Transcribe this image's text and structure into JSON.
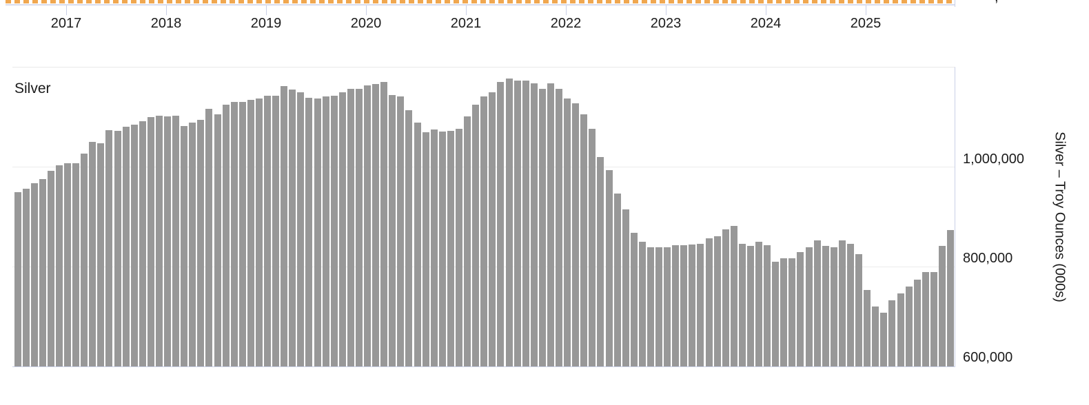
{
  "top_axis": {
    "years": [
      "2017",
      "2018",
      "2019",
      "2020",
      "2021",
      "2022",
      "2023",
      "2024",
      "2025"
    ],
    "clipped_label_fragment": ","
  },
  "panel": {
    "series_label": "Silver"
  },
  "y_axis": {
    "tick_labels": [
      "1,000,000",
      "800,000",
      "600,000"
    ],
    "title": "Silver – Troy Ounces (000s)"
  },
  "colors": {
    "bar": "#989898",
    "dash_orange": "#f0a750",
    "axis_line": "#d8dcec",
    "tick": "#c9cfe6",
    "gridline": "#ececec",
    "panel_top_border": "#e8e8e8",
    "text": "#1b1b1b"
  },
  "chart_data": {
    "type": "bar",
    "title": "Silver",
    "xlabel": "",
    "ylabel": "Silver – Troy Ounces (000s)",
    "unit": "thousand troy ounces",
    "frequency": "monthly",
    "x_start": "2016-07",
    "x_end": "2025-11",
    "x_tick_labels": [
      "2017",
      "2018",
      "2019",
      "2020",
      "2021",
      "2022",
      "2023",
      "2024",
      "2025"
    ],
    "ylim": [
      600000,
      1205000
    ],
    "y_gridlines": [
      800000,
      1000000
    ],
    "legend": "none",
    "values": [
      950000,
      957000,
      968000,
      976000,
      993000,
      1004000,
      1008000,
      1008000,
      1028000,
      1051000,
      1049000,
      1075000,
      1074000,
      1081000,
      1086000,
      1093000,
      1101000,
      1104000,
      1103000,
      1104000,
      1083000,
      1090000,
      1096000,
      1118000,
      1107000,
      1126000,
      1131000,
      1132000,
      1136000,
      1139000,
      1144000,
      1144000,
      1163000,
      1156000,
      1151000,
      1140000,
      1139000,
      1143000,
      1144000,
      1151000,
      1158000,
      1158000,
      1165000,
      1167000,
      1172000,
      1146000,
      1143000,
      1115000,
      1090000,
      1071000,
      1076000,
      1072000,
      1074000,
      1078000,
      1103000,
      1126000,
      1142000,
      1151000,
      1171000,
      1179000,
      1174000,
      1174000,
      1169000,
      1158000,
      1169000,
      1158000,
      1139000,
      1129000,
      1106000,
      1078000,
      1021000,
      994000,
      947000,
      915000,
      869000,
      850000,
      839000,
      839000,
      839000,
      844000,
      844000,
      845000,
      847000,
      858000,
      861000,
      875000,
      882000,
      847000,
      842000,
      851000,
      844000,
      810000,
      818000,
      817000,
      830000,
      839000,
      853000,
      842000,
      839000,
      853000,
      847000,
      825000,
      753000,
      721000,
      708000,
      733000,
      747000,
      761000,
      775000,
      789000,
      789000,
      842000,
      874000
    ]
  }
}
